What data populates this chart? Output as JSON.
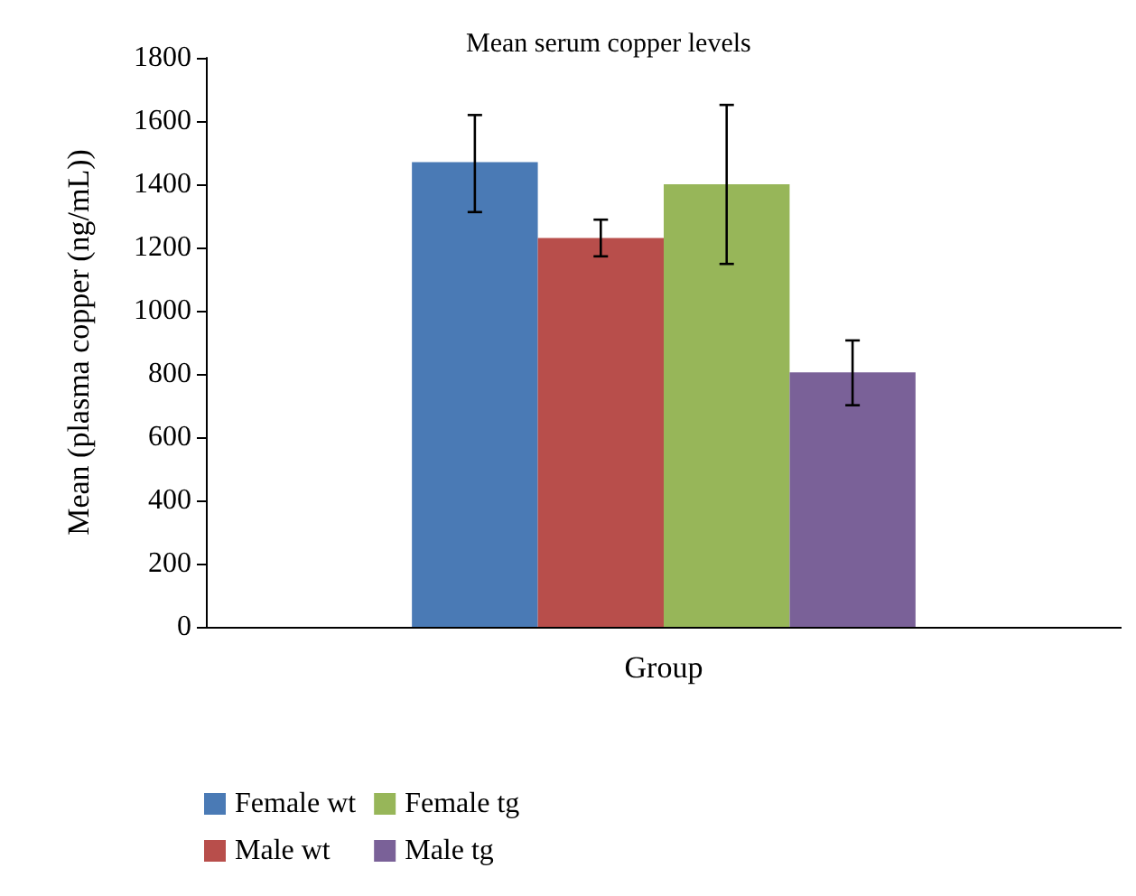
{
  "chart_data": {
    "type": "bar",
    "title": "Mean serum copper levels",
    "ylabel": "Mean (plasma copper (ng/mL))",
    "categories": [
      "Group"
    ],
    "series": [
      {
        "name": "Female wt",
        "color": "#4a7ab5",
        "values": [
          1470
        ],
        "errors": [
          [
            1312,
            1619
          ]
        ]
      },
      {
        "name": "Male wt",
        "color": "#b84e4b",
        "values": [
          1230
        ],
        "errors": [
          [
            1172,
            1288
          ]
        ]
      },
      {
        "name": "Female tg",
        "color": "#97b659",
        "values": [
          1400
        ],
        "errors": [
          [
            1148,
            1651
          ]
        ]
      },
      {
        "name": "Male tg",
        "color": "#7a6198",
        "values": [
          805
        ],
        "errors": [
          [
            701,
            906
          ]
        ]
      }
    ],
    "ylim": [
      0,
      1800
    ],
    "yticks": [
      0,
      200,
      400,
      600,
      800,
      1000,
      1200,
      1400,
      1600,
      1800
    ],
    "grid": false,
    "legend": "bottom"
  }
}
